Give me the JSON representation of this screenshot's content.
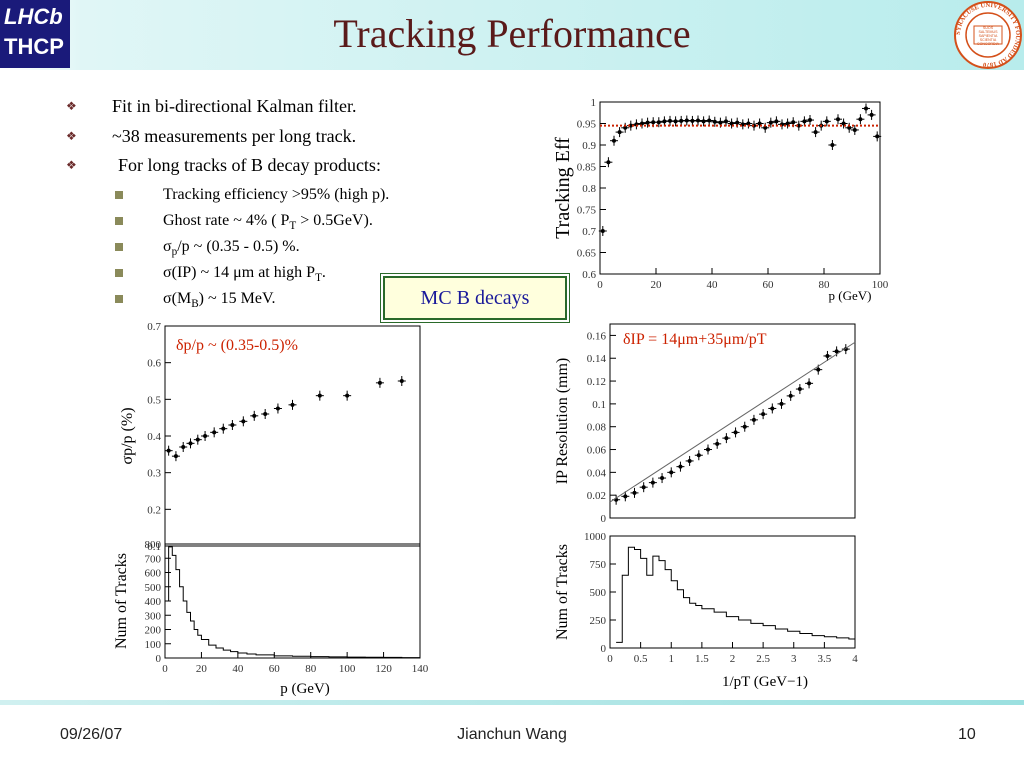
{
  "slide": {
    "title": "Tracking Performance",
    "logo_left": {
      "line1": "LHCb",
      "line2": "THCP"
    },
    "logo_right": {
      "ring_text": "SYRACUSE UNIVERSITY FOUNDED AD 1870",
      "center_text": "SUOS SALTEMUS SAPIENTIA SCIENTIA CONCORDIA"
    }
  },
  "bullets": {
    "b1": "Fit in bi-directional Kalman filter.",
    "b2": "~38 measurements per long track.",
    "b3": "For long tracks of B decay products:",
    "s1": "Tracking efficiency >95% (high p).",
    "s2_pre": "Ghost rate ~ 4% ( P",
    "s2_sub": "T",
    "s2_post": " > 0.5GeV).",
    "s3_pre": "σ",
    "s3_sub": "p",
    "s3_post": "/p  ~ (0.35 - 0.5) %.",
    "s4_pre": "σ(IP) ~ 14 μm at high P",
    "s4_sub": "T",
    "s4_post": ".",
    "s5_pre": "σ(M",
    "s5_sub": "B",
    "s5_post": ") ~ 15 MeV."
  },
  "mc_box": "MC B decays",
  "footer": {
    "date": "09/26/07",
    "author": "Jianchun Wang",
    "page": "10"
  },
  "colors": {
    "title": "#5a1a1a",
    "header_bg": "#b8ecec",
    "annotation_red": "#cc2200",
    "box_text": "#1a1a9a",
    "box_border": "#2a6a2a"
  },
  "chart_data": [
    {
      "type": "scatter",
      "ylabel": "Tracking Eff",
      "xlabel": "p (GeV)",
      "xlim": [
        0,
        100
      ],
      "ylim": [
        0.6,
        1.0
      ],
      "xticks": [
        "0",
        "20",
        "40",
        "60",
        "80",
        "100"
      ],
      "yticks": [
        "0.6",
        "0.65",
        "0.7",
        "0.75",
        "0.8",
        "0.85",
        "0.9",
        "0.95",
        "1"
      ],
      "reference_line": 0.945,
      "x": [
        1,
        3,
        5,
        7,
        9,
        11,
        13,
        15,
        17,
        19,
        21,
        23,
        25,
        27,
        29,
        31,
        33,
        35,
        37,
        39,
        41,
        43,
        45,
        47,
        49,
        51,
        53,
        55,
        57,
        59,
        61,
        63,
        65,
        67,
        69,
        71,
        73,
        75,
        77,
        79,
        81,
        83,
        85,
        87,
        89,
        91,
        93,
        95,
        97,
        99
      ],
      "y": [
        0.7,
        0.86,
        0.91,
        0.93,
        0.94,
        0.945,
        0.948,
        0.95,
        0.952,
        0.953,
        0.953,
        0.955,
        0.956,
        0.955,
        0.956,
        0.957,
        0.956,
        0.957,
        0.955,
        0.957,
        0.954,
        0.952,
        0.955,
        0.95,
        0.952,
        0.948,
        0.95,
        0.945,
        0.95,
        0.94,
        0.952,
        0.955,
        0.948,
        0.95,
        0.953,
        0.945,
        0.955,
        0.958,
        0.93,
        0.945,
        0.955,
        0.9,
        0.96,
        0.95,
        0.94,
        0.935,
        0.96,
        0.985,
        0.97,
        0.92
      ]
    },
    {
      "type": "scatter",
      "annotation": "δp/p ~ (0.35-0.5)%",
      "ylabel": "σp/p (%)",
      "xlim": [
        0,
        140
      ],
      "ylim": [
        0.1,
        0.7
      ],
      "yticks": [
        "0.1",
        "0.2",
        "0.3",
        "0.4",
        "0.5",
        "0.6",
        "0.7"
      ],
      "x": [
        2,
        6,
        10,
        14,
        18,
        22,
        27,
        32,
        37,
        43,
        49,
        55,
        62,
        70,
        85,
        100,
        118,
        130
      ],
      "y": [
        0.36,
        0.345,
        0.37,
        0.38,
        0.39,
        0.4,
        0.41,
        0.42,
        0.43,
        0.44,
        0.455,
        0.46,
        0.475,
        0.485,
        0.51,
        0.51,
        0.545,
        0.55
      ]
    },
    {
      "type": "line",
      "ylabel": "Num of Tracks",
      "xlabel": "p (GeV)",
      "xlim": [
        0,
        140
      ],
      "ylim": [
        0,
        800
      ],
      "xticks": [
        "0",
        "20",
        "40",
        "60",
        "80",
        "100",
        "120",
        "140"
      ],
      "yticks": [
        "0",
        "100",
        "200",
        "300",
        "400",
        "500",
        "600",
        "700",
        "800"
      ],
      "x": [
        0,
        2,
        4,
        6,
        8,
        10,
        12,
        14,
        16,
        18,
        20,
        24,
        28,
        32,
        36,
        40,
        45,
        50,
        60,
        70,
        80,
        90,
        100,
        110,
        120,
        130,
        140
      ],
      "y": [
        400,
        780,
        720,
        620,
        500,
        400,
        320,
        260,
        200,
        160,
        130,
        90,
        70,
        55,
        45,
        35,
        28,
        22,
        15,
        12,
        10,
        8,
        6,
        5,
        4,
        3,
        3
      ]
    },
    {
      "type": "scatter",
      "annotation": "δIP = 14μm+35μm/pT",
      "ylabel": "IP Resolution (mm)",
      "xlim": [
        0,
        4
      ],
      "ylim": [
        0,
        0.17
      ],
      "yticks": [
        "0",
        "0.02",
        "0.04",
        "0.06",
        "0.08",
        "0.1",
        "0.12",
        "0.14",
        "0.16"
      ],
      "x": [
        0.1,
        0.25,
        0.4,
        0.55,
        0.7,
        0.85,
        1.0,
        1.15,
        1.3,
        1.45,
        1.6,
        1.75,
        1.9,
        2.05,
        2.2,
        2.35,
        2.5,
        2.65,
        2.8,
        2.95,
        3.1,
        3.25,
        3.4,
        3.55,
        3.7,
        3.85
      ],
      "y": [
        0.016,
        0.019,
        0.022,
        0.027,
        0.031,
        0.035,
        0.04,
        0.045,
        0.05,
        0.055,
        0.06,
        0.065,
        0.07,
        0.075,
        0.08,
        0.086,
        0.091,
        0.096,
        0.1,
        0.107,
        0.113,
        0.118,
        0.13,
        0.142,
        0.146,
        0.148
      ]
    },
    {
      "type": "line",
      "ylabel": "Num of Tracks",
      "xlabel": "1/pT (GeV−1)",
      "xlim": [
        0,
        4
      ],
      "ylim": [
        0,
        1000
      ],
      "xticks": [
        "0",
        "0.5",
        "1",
        "1.5",
        "2",
        "2.5",
        "3",
        "3.5",
        "4"
      ],
      "yticks": [
        "0",
        "250",
        "500",
        "750",
        "1000"
      ],
      "x": [
        0.1,
        0.2,
        0.3,
        0.4,
        0.5,
        0.6,
        0.7,
        0.8,
        0.9,
        1.0,
        1.1,
        1.2,
        1.3,
        1.4,
        1.5,
        1.7,
        1.9,
        2.1,
        2.3,
        2.5,
        2.7,
        2.9,
        3.1,
        3.3,
        3.5,
        3.7,
        3.9
      ],
      "y": [
        50,
        650,
        900,
        880,
        800,
        650,
        820,
        780,
        700,
        600,
        520,
        450,
        400,
        380,
        350,
        320,
        280,
        250,
        220,
        200,
        170,
        150,
        130,
        110,
        100,
        90,
        80
      ]
    }
  ]
}
